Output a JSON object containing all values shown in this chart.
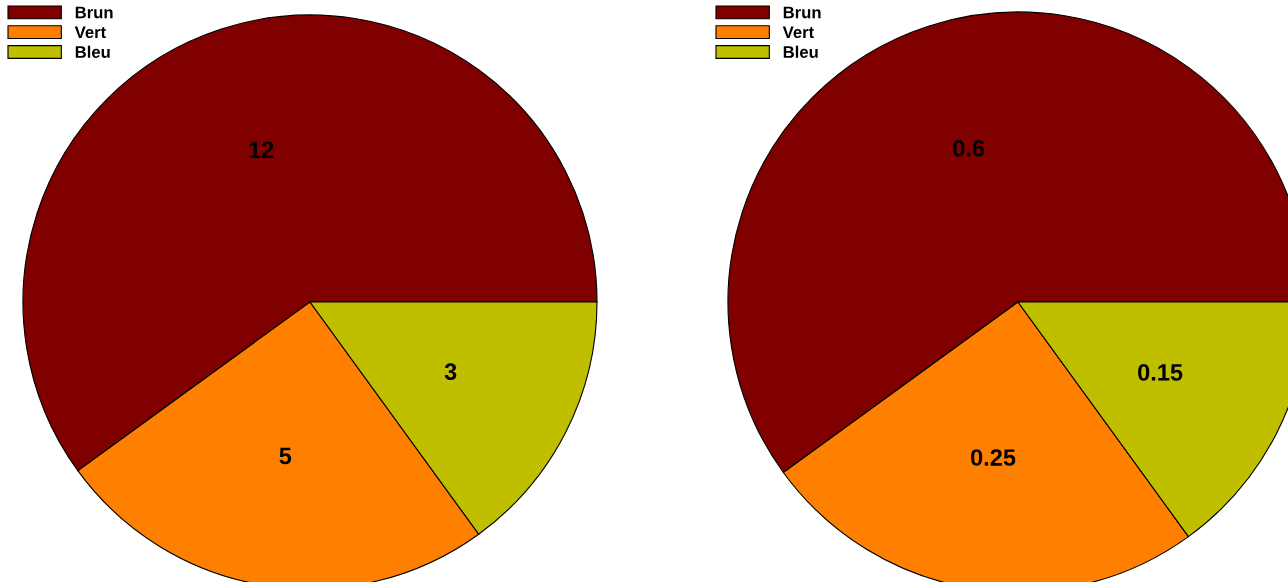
{
  "chart_data": [
    {
      "type": "pie",
      "categories": [
        "Brun",
        "Vert",
        "Bleu"
      ],
      "values": [
        12,
        5,
        3
      ],
      "colors": [
        "#800000",
        "#ff8000",
        "#bfbf00"
      ],
      "data_labels": true,
      "legend": "top left"
    },
    {
      "type": "pie",
      "categories": [
        "Brun",
        "Vert",
        "Bleu"
      ],
      "values": [
        0.6,
        0.25,
        0.15
      ],
      "colors": [
        "#800000",
        "#ff8000",
        "#bfbf00"
      ],
      "data_labels": true,
      "legend": "top left"
    }
  ]
}
